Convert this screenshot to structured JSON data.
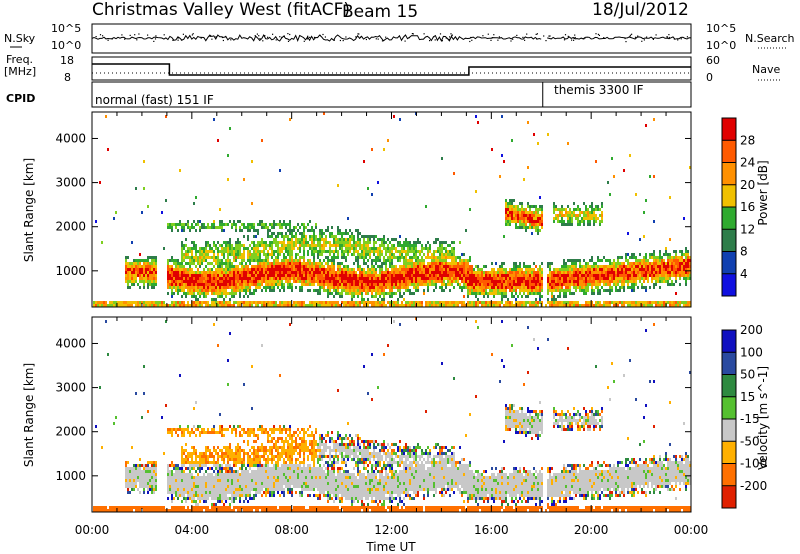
{
  "chart_data": {
    "header": {
      "title": "Christmas Valley West (fitACF)",
      "beam": "Beam 15",
      "date": "18/Jul/2012"
    },
    "x_axis": {
      "label": "Time UT",
      "ticks": [
        "00:00",
        "04:00",
        "08:00",
        "12:00",
        "16:00",
        "20:00",
        "00:00"
      ],
      "tick_hours": [
        0,
        4,
        8,
        12,
        16,
        20,
        24
      ],
      "range_hours": [
        0,
        24
      ]
    },
    "noise_panel": {
      "type": "line",
      "left_label": "N.Sky",
      "right_label": "N.Search",
      "left_ticks": [
        "10^5",
        "10^0"
      ],
      "right_ticks": [
        "10^5",
        "10^0"
      ]
    },
    "freq_panel": {
      "type": "line",
      "left_label_1": "Freq.",
      "left_label_2": "[MHz]",
      "right_label": "Nave",
      "left_ticks": [
        "18",
        "8"
      ],
      "right_ticks": [
        "60",
        "0"
      ],
      "series": [
        {
          "x": [
            0,
            3.1,
            3.1,
            15.1,
            15.1,
            18.1,
            18.1,
            24
          ],
          "y": [
            16,
            16,
            10.5,
            10.5,
            14.5,
            14.5,
            14.5,
            14.5
          ]
        }
      ]
    },
    "cpid_panel": {
      "label": "CPID",
      "modes": [
        {
          "name": "normal (fast) 151 IF",
          "start_hour": 0,
          "end_hour": 18.0
        },
        {
          "name": "themis 3300 IF",
          "start_hour": 18.1,
          "end_hour": 24
        }
      ]
    },
    "power_panel": {
      "type": "heatmap",
      "ylabel": "Slant Range [km]",
      "y_ticks": [
        1000,
        2000,
        3000,
        4000
      ],
      "ylim": [
        180,
        4600
      ],
      "colorbar_label": "Power [dB]",
      "colorbar_ticks": [
        4,
        8,
        12,
        16,
        20,
        24,
        28
      ],
      "colors": [
        "#1010e0",
        "#1040b0",
        "#2e7d4a",
        "#2faa2f",
        "#7fcf20",
        "#f0c000",
        "#ff9000",
        "#ff5a00",
        "#e00000"
      ]
    },
    "velocity_panel": {
      "type": "heatmap",
      "ylabel": "Slant Range [km]",
      "y_ticks": [
        1000,
        2000,
        3000,
        4000
      ],
      "ylim": [
        180,
        4600
      ],
      "colorbar_label": "Velocity [m s^-1]",
      "colorbar_ticks": [
        200,
        100,
        50,
        15,
        -15,
        -50,
        -100,
        -200
      ],
      "colors": [
        "#1010c0",
        "#2a4aa0",
        "#2e8a40",
        "#55c030",
        "#c8c8c8",
        "#ffb000",
        "#ff7000",
        "#e02000"
      ]
    }
  }
}
